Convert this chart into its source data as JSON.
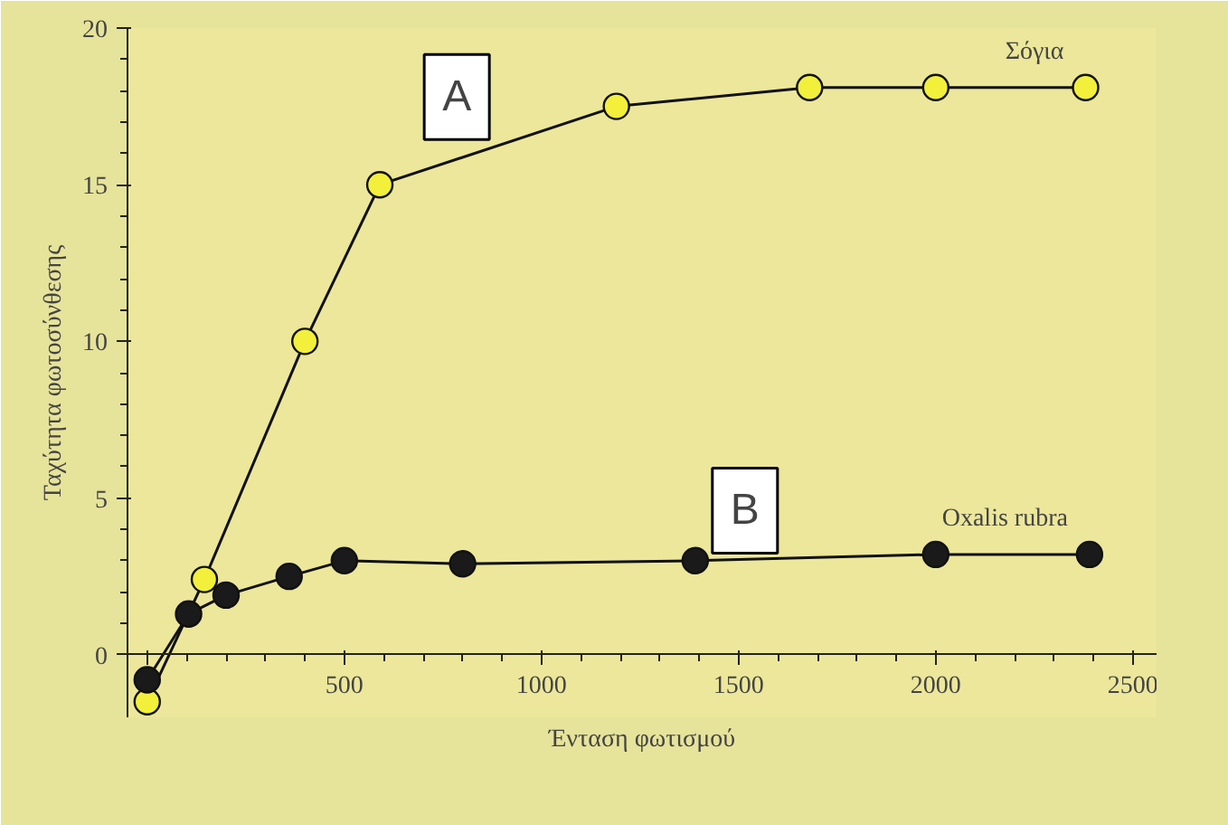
{
  "chart_data": {
    "type": "line",
    "xlabel": "Ένταση φωτισμού",
    "ylabel": "Ταχύτητα φωτοσύνθεσης",
    "marker": "circle",
    "grid": false,
    "legend": false,
    "xlim": [
      -50,
      2560
    ],
    "ylim": [
      -2,
      20
    ],
    "xticks": [
      {
        "value": 0,
        "label": null
      },
      500,
      1000,
      1500,
      2000,
      2500
    ],
    "yticks": [
      0,
      5,
      10,
      15,
      20
    ],
    "annotations": [
      "A",
      "B"
    ],
    "series": [
      {
        "name": "Σόγια",
        "color": "#f2f03a",
        "x": [
          0,
          145,
          400,
          590,
          1190,
          1680,
          2000,
          2380
        ],
        "values": [
          -1.5,
          2.4,
          10,
          15,
          17.5,
          18.1,
          18.1,
          18.1
        ]
      },
      {
        "name": "Oxalis rubra",
        "color": "#1a1a1a",
        "x": [
          0,
          105,
          200,
          360,
          500,
          800,
          1390,
          2000,
          2390
        ],
        "values": [
          -0.8,
          1.3,
          1.9,
          2.5,
          3.0,
          2.9,
          3.0,
          3.2,
          3.2
        ]
      }
    ]
  }
}
